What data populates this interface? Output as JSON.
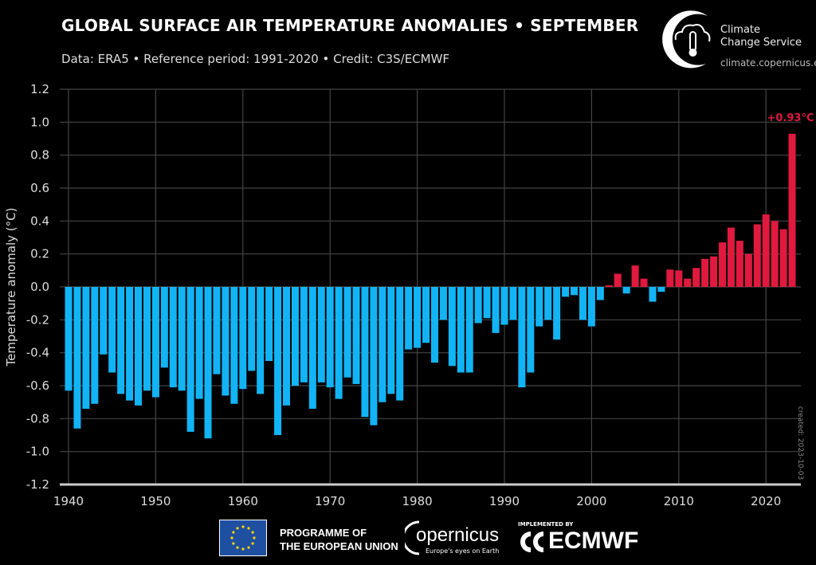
{
  "header": {
    "title": "GLOBAL SURFACE AIR TEMPERATURE ANOMALIES • SEPTEMBER",
    "subtitle": "Data: ERA5 • Reference period: 1991-2020 • Credit: C3S/ECMWF"
  },
  "logo": {
    "line1": "Climate",
    "line2": "Change Service",
    "url": "climate.copernicus.eu",
    "icon": "cloud-thermometer-icon"
  },
  "footer": {
    "eu_line1": "PROGRAMME OF",
    "eu_line2": "THE EUROPEAN UNION",
    "copernicus": "opernicus",
    "copernicus_tagline": "Europe's eyes on Earth",
    "implemented_by": "IMPLEMENTED BY",
    "ecmwf": "ECMWF"
  },
  "created": "created: 2023-10-03",
  "chart_data": {
    "type": "bar",
    "title": "GLOBAL SURFACE AIR TEMPERATURE ANOMALIES • SEPTEMBER",
    "xlabel": "",
    "ylabel": "Temperature anomaly (°C)",
    "ylim": [
      -1.2,
      1.2
    ],
    "yticks": [
      "1.2",
      "1.0",
      "0.8",
      "0.6",
      "0.4",
      "0.2",
      "0.0",
      "-0.2",
      "-0.4",
      "-0.6",
      "-0.8",
      "-1.0",
      "-1.2"
    ],
    "xticks": [
      "1940",
      "1950",
      "1960",
      "1970",
      "1980",
      "1990",
      "2000",
      "2010",
      "2020"
    ],
    "grid": true,
    "colors": {
      "negative": "#12b4f5",
      "positive": "#e0193f"
    },
    "annotation": "+0.93°C",
    "x_start": 1940,
    "values": [
      -0.63,
      -0.86,
      -0.74,
      -0.71,
      -0.41,
      -0.52,
      -0.65,
      -0.69,
      -0.72,
      -0.63,
      -0.67,
      -0.49,
      -0.61,
      -0.63,
      -0.88,
      -0.68,
      -0.92,
      -0.53,
      -0.66,
      -0.71,
      -0.62,
      -0.51,
      -0.65,
      -0.45,
      -0.9,
      -0.72,
      -0.6,
      -0.58,
      -0.74,
      -0.58,
      -0.61,
      -0.68,
      -0.55,
      -0.59,
      -0.79,
      -0.84,
      -0.7,
      -0.65,
      -0.69,
      -0.38,
      -0.37,
      -0.34,
      -0.46,
      -0.2,
      -0.48,
      -0.52,
      -0.52,
      -0.22,
      -0.19,
      -0.28,
      -0.23,
      -0.2,
      -0.61,
      -0.52,
      -0.24,
      -0.2,
      -0.32,
      -0.06,
      -0.05,
      -0.2,
      -0.24,
      -0.08,
      0.01,
      0.08,
      -0.04,
      0.13,
      0.05,
      -0.09,
      -0.03,
      0.105,
      0.1,
      0.05,
      0.115,
      0.17,
      0.185,
      0.27,
      0.36,
      0.28,
      0.2,
      0.38,
      0.44,
      0.4,
      0.35,
      0.93
    ]
  }
}
